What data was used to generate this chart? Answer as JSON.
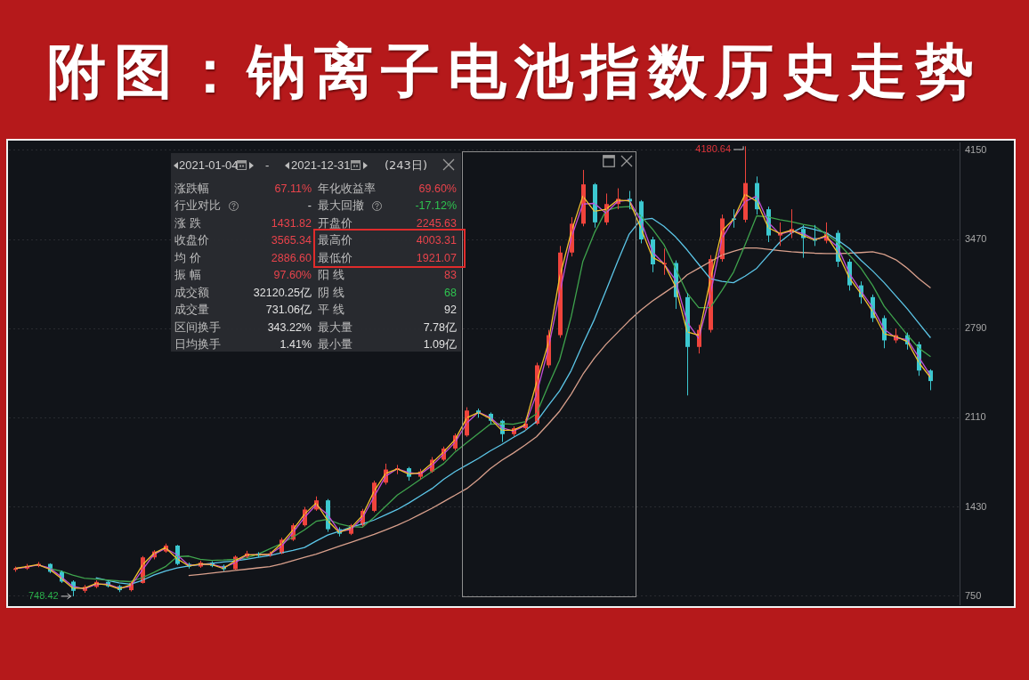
{
  "chart_data": {
    "type": "candlestick",
    "title": "附图：钠离子电池指数历史走势",
    "categories": [
      null,
      null,
      null,
      null,
      null,
      null,
      null,
      null,
      null,
      null,
      null,
      null,
      null,
      null,
      null,
      null,
      null,
      null,
      null,
      null,
      null,
      null,
      null,
      null,
      null,
      null,
      null,
      null,
      null,
      null,
      null,
      null,
      null,
      null,
      null,
      null,
      null,
      null,
      null,
      null,
      null,
      null,
      null,
      null,
      null,
      null,
      null,
      null,
      null,
      null,
      null,
      null,
      null,
      null,
      null,
      null,
      null,
      null,
      null,
      null,
      null,
      null,
      null,
      null,
      null,
      null,
      null,
      null,
      null,
      null,
      null,
      null,
      null,
      null,
      null,
      null,
      null,
      null,
      null,
      null,
      null,
      null
    ],
    "ohlc": [
      [
        950,
        975,
        935,
        960
      ],
      [
        960,
        995,
        950,
        980
      ],
      [
        980,
        1010,
        970,
        995
      ],
      [
        995,
        1000,
        925,
        935
      ],
      [
        935,
        945,
        850,
        860
      ],
      [
        860,
        870,
        748.42,
        790
      ],
      [
        790,
        835,
        775,
        820
      ],
      [
        820,
        870,
        810,
        858
      ],
      [
        858,
        865,
        815,
        825
      ],
      [
        825,
        835,
        780,
        795
      ],
      [
        795,
        860,
        785,
        850
      ],
      [
        850,
        1055,
        845,
        1045
      ],
      [
        1045,
        1100,
        1030,
        1090
      ],
      [
        1090,
        1150,
        1080,
        1135
      ],
      [
        1135,
        1140,
        985,
        995
      ],
      [
        995,
        1005,
        960,
        975
      ],
      [
        975,
        1020,
        965,
        1005
      ],
      [
        1005,
        1015,
        970,
        980
      ],
      [
        980,
        990,
        940,
        955
      ],
      [
        955,
        1060,
        950,
        1050
      ],
      [
        1050,
        1095,
        1040,
        1075
      ],
      [
        1075,
        1085,
        1045,
        1058
      ],
      [
        1058,
        1090,
        1050,
        1075
      ],
      [
        1075,
        1195,
        1070,
        1180
      ],
      [
        1180,
        1305,
        1170,
        1290
      ],
      [
        1290,
        1430,
        1280,
        1410
      ],
      [
        1410,
        1510,
        1400,
        1480
      ],
      [
        1480,
        1490,
        1240,
        1260
      ],
      [
        1260,
        1275,
        1205,
        1225
      ],
      [
        1225,
        1300,
        1215,
        1290
      ],
      [
        1290,
        1415,
        1280,
        1400
      ],
      [
        1400,
        1630,
        1390,
        1615
      ],
      [
        1615,
        1760,
        1600,
        1715
      ],
      [
        1715,
        1750,
        1680,
        1725
      ],
      [
        1725,
        1735,
        1630,
        1660
      ],
      [
        1660,
        1720,
        1640,
        1700
      ],
      [
        1700,
        1810,
        1690,
        1790
      ],
      [
        1790,
        1890,
        1780,
        1875
      ],
      [
        1875,
        1990,
        1860,
        1975
      ],
      [
        1975,
        2190,
        1965,
        2165
      ],
      [
        2165,
        2180,
        2110,
        2140
      ],
      [
        2140,
        2150,
        2060,
        2087
      ],
      [
        2087,
        2095,
        1925,
        1985
      ],
      [
        1985,
        2045,
        1970,
        2030
      ],
      [
        2030,
        2100,
        2015,
        2065
      ],
      [
        2065,
        2530,
        2055,
        2510
      ],
      [
        2510,
        2780,
        2490,
        2740
      ],
      [
        2740,
        3420,
        2720,
        3370
      ],
      [
        3370,
        3640,
        3340,
        3590
      ],
      [
        3590,
        4000,
        3570,
        3890
      ],
      [
        3890,
        3900,
        3560,
        3600
      ],
      [
        3600,
        3820,
        3580,
        3740
      ],
      [
        3740,
        3860,
        3700,
        3780
      ],
      [
        3780,
        3840,
        3700,
        3760
      ],
      [
        3760,
        3770,
        3440,
        3470
      ],
      [
        3470,
        3490,
        3220,
        3280
      ],
      [
        3280,
        3400,
        3200,
        3290
      ],
      [
        3290,
        3310,
        2940,
        3030
      ],
      [
        3030,
        3060,
        2280,
        2650
      ],
      [
        2650,
        2820,
        2600,
        2780
      ],
      [
        2780,
        3350,
        2760,
        3320
      ],
      [
        3320,
        3660,
        3300,
        3630
      ],
      [
        3630,
        3700,
        3560,
        3620
      ],
      [
        3620,
        4180.64,
        3600,
        3900
      ],
      [
        3900,
        3950,
        3660,
        3700
      ],
      [
        3700,
        3720,
        3450,
        3500
      ],
      [
        3500,
        3600,
        3420,
        3520
      ],
      [
        3520,
        3700,
        3480,
        3550
      ],
      [
        3550,
        3580,
        3330,
        3480
      ],
      [
        3480,
        3580,
        3420,
        3460
      ],
      [
        3460,
        3600,
        3440,
        3520
      ],
      [
        3520,
        3540,
        3260,
        3300
      ],
      [
        3300,
        3320,
        3080,
        3120
      ],
      [
        3120,
        3150,
        2980,
        3030
      ],
      [
        3030,
        3050,
        2840,
        2870
      ],
      [
        2870,
        2890,
        2640,
        2700
      ],
      [
        2700,
        2790,
        2680,
        2740
      ],
      [
        2740,
        2760,
        2630,
        2670
      ],
      [
        2670,
        2690,
        2430,
        2470
      ],
      [
        2470,
        2480,
        2320,
        2390
      ],
      null,
      null
    ],
    "series": [
      {
        "type": "line",
        "color": "#f2c12e",
        "values": [
          960,
          975,
          990,
          955,
          885,
          810,
          810,
          845,
          835,
          805,
          835,
          985,
          1075,
          1120,
          1035,
          980,
          995,
          990,
          960,
          1020,
          1065,
          1065,
          1070,
          1150,
          1255,
          1375,
          1460,
          1325,
          1235,
          1270,
          1365,
          1550,
          1685,
          1720,
          1680,
          1690,
          1765,
          1850,
          1945,
          2110,
          2150,
          2105,
          2015,
          2015,
          2055,
          2375,
          2670,
          3180,
          3525,
          3800,
          3685,
          3700,
          3770,
          3765,
          3560,
          3335,
          3285,
          3110,
          2765,
          2740,
          3160,
          3535,
          3625,
          3815,
          3760,
          3560,
          3515,
          3540,
          3500,
          3465,
          3500,
          3365,
          3175,
          3055,
          2920,
          2750,
          2730,
          2690,
          2530,
          2415,
          null,
          null
        ]
      },
      {
        "type": "line",
        "color": "#c450d8",
        "values": [
          960,
          970,
          988,
          965,
          898,
          825,
          805,
          839,
          842,
          810,
          823,
          948,
          1068,
          1113,
          1065,
          985,
          990,
          993,
          968,
          1003,
          1063,
          1067,
          1067,
          1128,
          1235,
          1350,
          1445,
          1370,
          1243,
          1258,
          1345,
          1508,
          1665,
          1720,
          1693,
          1680,
          1745,
          1833,
          1925,
          2070,
          2153,
          2114,
          2036,
          2008,
          2048,
          2288,
          2625,
          3055,
          3480,
          3740,
          3745,
          3670,
          3760,
          3770,
          3615,
          3375,
          3285,
          3160,
          2840,
          2715,
          3050,
          3475,
          3625,
          3760,
          3800,
          3600,
          3510,
          3535,
          3515,
          3470,
          3490,
          3410,
          3210,
          3075,
          2950,
          2785,
          2720,
          2705,
          2570,
          2430,
          null,
          null
        ]
      },
      {
        "type": "line",
        "color": "#3fa34d",
        "values": [
          null,
          null,
          null,
          960,
          940,
          910,
          886,
          880,
          872,
          865,
          860,
          890,
          930,
          974,
          1050,
          1055,
          1030,
          1022,
          1025,
          1030,
          1040,
          1070,
          1110,
          1150,
          1200,
          1255,
          1320,
          1335,
          1300,
          1280,
          1275,
          1350,
          1435,
          1520,
          1580,
          1640,
          1700,
          1760,
          1850,
          1920,
          1990,
          2060,
          2065,
          2060,
          2080,
          2140,
          2350,
          2550,
          2880,
          3300,
          3520,
          3690,
          3715,
          3720,
          3650,
          3550,
          3430,
          3250,
          3060,
          2950,
          2950,
          3080,
          3220,
          3430,
          3650,
          3640,
          3620,
          3605,
          3585,
          3570,
          3510,
          3445,
          3350,
          3250,
          3120,
          2960,
          2850,
          2740,
          2640,
          2575,
          null,
          null
        ]
      },
      {
        "type": "line",
        "color": "#5cc6e8",
        "values": [
          null,
          null,
          null,
          null,
          null,
          null,
          null,
          890,
          870,
          850,
          840,
          870,
          910,
          940,
          965,
          980,
          990,
          1000,
          1010,
          1018,
          1030,
          1045,
          1060,
          1080,
          1098,
          1120,
          1170,
          1215,
          1245,
          1275,
          1300,
          1330,
          1370,
          1410,
          1460,
          1515,
          1570,
          1640,
          1700,
          1750,
          1800,
          1856,
          1905,
          1960,
          2010,
          2080,
          2200,
          2315,
          2470,
          2670,
          2860,
          3080,
          3300,
          3510,
          3620,
          3630,
          3570,
          3490,
          3390,
          3280,
          3170,
          3150,
          3140,
          3190,
          3250,
          3350,
          3450,
          3520,
          3566,
          3545,
          3520,
          3465,
          3400,
          3310,
          3230,
          3140,
          3040,
          2940,
          2830,
          2720,
          null,
          null
        ]
      },
      {
        "type": "line",
        "color": "#d9a08c",
        "values": [
          null,
          null,
          null,
          null,
          null,
          null,
          null,
          null,
          null,
          null,
          null,
          null,
          null,
          null,
          null,
          906,
          915,
          925,
          935,
          945,
          955,
          965,
          974,
          995,
          1020,
          1045,
          1070,
          1100,
          1130,
          1160,
          1190,
          1220,
          1255,
          1290,
          1330,
          1375,
          1420,
          1470,
          1520,
          1570,
          1640,
          1720,
          1785,
          1840,
          1900,
          1965,
          2060,
          2160,
          2290,
          2440,
          2565,
          2670,
          2760,
          2850,
          2930,
          3000,
          3060,
          3120,
          3200,
          3250,
          3300,
          3350,
          3380,
          3405,
          3405,
          3395,
          3385,
          3376,
          3370,
          3365,
          3362,
          3362,
          3365,
          3370,
          3376,
          3355,
          3315,
          3250,
          3170,
          3100,
          null,
          null
        ]
      }
    ],
    "ylim": [
      680,
      4210
    ],
    "yticks": [
      750,
      1430,
      2110,
      2790,
      3470,
      4150
    ],
    "grid": "y",
    "tick_labels": "y",
    "annotations": [
      "4180.64",
      "748.42",
      "2021-01-04",
      "-",
      "2021-12-31",
      "(243日)",
      "涨跌幅",
      "67.11%",
      "年化收益率",
      "69.60%",
      "行业对比",
      "-",
      "最大回撤",
      "-17.12%",
      "涨 跌",
      "1431.82",
      "开盘价",
      "2245.63",
      "收盘价",
      "3565.34",
      "最高价",
      "4003.31",
      "均 价",
      "2886.60",
      "最低价",
      "1921.07",
      "振 幅",
      "97.60%",
      "阳 线",
      "83",
      "成交额",
      "32120.25亿",
      "阴 线",
      "68",
      "成交量",
      "731.06亿",
      "平 线",
      "92",
      "区间换手",
      "343.22%",
      "最大量",
      "7.78亿",
      "日均换手",
      "1.41%",
      "最小量",
      "1.09亿"
    ]
  }
}
